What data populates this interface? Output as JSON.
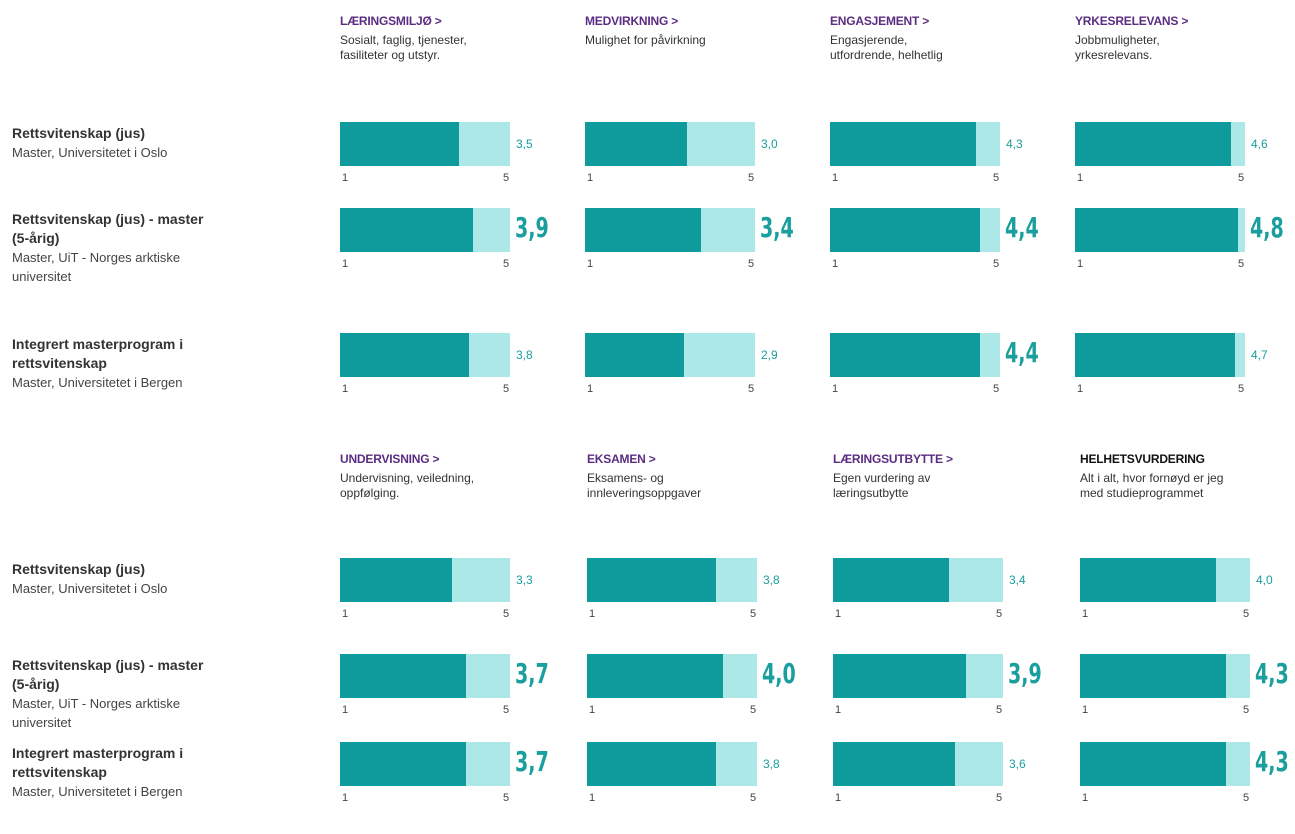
{
  "programs": [
    {
      "name": [
        "Rettsvitenskap (jus)"
      ],
      "sub": [
        "Master, Universitetet i Oslo"
      ]
    },
    {
      "name": [
        "Rettsvitenskap (jus) - master",
        "(5-årig)"
      ],
      "sub": [
        "Master, UiT - Norges arktiske",
        "universitet"
      ]
    },
    {
      "name": [
        "Integrert masterprogram i",
        "rettsvitenskap"
      ],
      "sub": [
        "Master, Universitetet i Bergen"
      ]
    }
  ],
  "scale": {
    "min": 1,
    "max": 5
  },
  "bar_colors": {
    "filled": "#0f9b9b",
    "rest": "#ade8e8"
  },
  "sections": [
    {
      "criteria": [
        {
          "title": "LÆRINGSMILJØ >",
          "color": "#5b2d82",
          "desc": [
            "Sosialt, faglig, tjenester,",
            "fasiliteter og utstyr."
          ]
        },
        {
          "title": "MEDVIRKNING >",
          "color": "#5b2d82",
          "desc": [
            "Mulighet for påvirkning"
          ]
        },
        {
          "title": "ENGASJEMENT >",
          "color": "#5b2d82",
          "desc": [
            "Engasjerende,",
            "utfordrende, helhetlig"
          ]
        },
        {
          "title": "YRKESRELEVANS >",
          "color": "#5b2d82",
          "desc": [
            "Jobbmuligheter,",
            "yrkesrelevans."
          ]
        }
      ],
      "scores": [
        [
          {
            "value": 3.5,
            "label": "3,5",
            "highlight": false
          },
          {
            "value": 3.0,
            "label": "3,0",
            "highlight": false
          },
          {
            "value": 4.3,
            "label": "4,3",
            "highlight": false
          },
          {
            "value": 4.6,
            "label": "4,6",
            "highlight": false
          }
        ],
        [
          {
            "value": 3.9,
            "label": "3,9",
            "highlight": true
          },
          {
            "value": 3.4,
            "label": "3,4",
            "highlight": true
          },
          {
            "value": 4.4,
            "label": "4,4",
            "highlight": true
          },
          {
            "value": 4.8,
            "label": "4,8",
            "highlight": true
          }
        ],
        [
          {
            "value": 3.8,
            "label": "3,8",
            "highlight": false
          },
          {
            "value": 2.9,
            "label": "2,9",
            "highlight": false
          },
          {
            "value": 4.4,
            "label": "4,4",
            "highlight": true
          },
          {
            "value": 4.7,
            "label": "4,7",
            "highlight": false
          }
        ]
      ]
    },
    {
      "criteria": [
        {
          "title": "UNDERVISNING >",
          "color": "#5b2d82",
          "desc": [
            "Undervisning, veiledning,",
            "oppfølging."
          ]
        },
        {
          "title": "EKSAMEN >",
          "color": "#5b2d82",
          "desc": [
            "Eksamens- og",
            "innleveringsoppgaver"
          ]
        },
        {
          "title": "LÆRINGSUTBYTTE >",
          "color": "#5b2d82",
          "desc": [
            "Egen vurdering av",
            "læringsutbytte"
          ]
        },
        {
          "title": "HELHETSVURDERING",
          "color": "#111111",
          "desc": [
            "Alt i alt, hvor fornøyd er jeg",
            "med studieprogrammet"
          ]
        }
      ],
      "scores": [
        [
          {
            "value": 3.3,
            "label": "3,3",
            "highlight": false
          },
          {
            "value": 3.8,
            "label": "3,8",
            "highlight": false
          },
          {
            "value": 3.4,
            "label": "3,4",
            "highlight": false
          },
          {
            "value": 4.0,
            "label": "4,0",
            "highlight": false
          }
        ],
        [
          {
            "value": 3.7,
            "label": "3,7",
            "highlight": true
          },
          {
            "value": 4.0,
            "label": "4,0",
            "highlight": true
          },
          {
            "value": 3.9,
            "label": "3,9",
            "highlight": true
          },
          {
            "value": 4.3,
            "label": "4,3",
            "highlight": true
          }
        ],
        [
          {
            "value": 3.7,
            "label": "3,7",
            "highlight": true
          },
          {
            "value": 3.8,
            "label": "3,8",
            "highlight": false
          },
          {
            "value": 3.6,
            "label": "3,6",
            "highlight": false
          },
          {
            "value": 4.3,
            "label": "4,3",
            "highlight": true
          }
        ]
      ]
    }
  ]
}
